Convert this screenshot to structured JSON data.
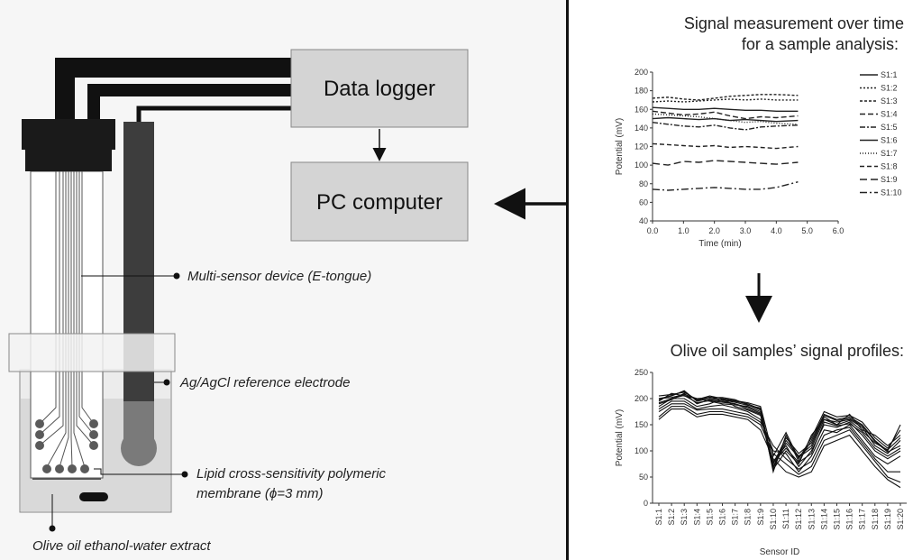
{
  "boxes": {
    "data_logger": "Data logger",
    "pc_computer": "PC computer"
  },
  "callouts": {
    "multi_sensor": "Multi-sensor device (E-tongue)",
    "reference_electrode": "Ag/AgCl reference electrode",
    "membrane_line1": "Lipid cross-sensitivity polymeric",
    "membrane_line2": "membrane (ϕ=3 mm)",
    "extract": "Olive oil ethanol-water extract"
  },
  "right": {
    "title1_line1": "Signal measurement over time",
    "title1_line2": "for a sample analysis:",
    "title2": "Olive oil samples’ signal profiles:"
  },
  "chart_data": [
    {
      "type": "line",
      "title": "Signal measurement over time for a sample analysis:",
      "xlabel": "Time (min)",
      "ylabel": "Potential (mV)",
      "xlim": [
        0,
        6
      ],
      "ylim": [
        40,
        200
      ],
      "xticks": [
        "0.0",
        "1.0",
        "2.0",
        "3.0",
        "4.0",
        "5.0",
        "6.0"
      ],
      "yticks": [
        "40",
        "60",
        "80",
        "100",
        "120",
        "140",
        "160",
        "180",
        "200"
      ],
      "x": [
        0,
        0.5,
        1,
        1.5,
        2,
        2.5,
        3,
        3.5,
        4,
        4.7
      ],
      "legend_position": "right",
      "series": [
        {
          "name": "S1:1",
          "dash": "",
          "values": [
            162,
            161,
            160,
            160,
            161,
            160,
            159,
            159,
            158,
            158
          ]
        },
        {
          "name": "S1:2",
          "dash": "2,2",
          "values": [
            168,
            169,
            168,
            169,
            170,
            171,
            170,
            171,
            170,
            170
          ]
        },
        {
          "name": "S1:3",
          "dash": "3,2",
          "values": [
            172,
            173,
            171,
            170,
            172,
            174,
            175,
            176,
            176,
            175
          ]
        },
        {
          "name": "S1:4",
          "dash": "6,3",
          "values": [
            158,
            156,
            154,
            155,
            157,
            153,
            150,
            152,
            151,
            153
          ]
        },
        {
          "name": "S1:5",
          "dash": "6,2,2,2",
          "values": [
            146,
            144,
            142,
            141,
            143,
            140,
            138,
            141,
            142,
            143
          ]
        },
        {
          "name": "S1:6",
          "dash": "",
          "values": [
            150,
            151,
            150,
            149,
            150,
            148,
            149,
            148,
            147,
            148
          ]
        },
        {
          "name": "S1:7",
          "dash": "1,2",
          "values": [
            155,
            154,
            153,
            152,
            150,
            148,
            146,
            147,
            145,
            144
          ]
        },
        {
          "name": "S1:8",
          "dash": "5,3",
          "values": [
            123,
            122,
            121,
            120,
            121,
            119,
            120,
            119,
            118,
            120
          ]
        },
        {
          "name": "S1:9",
          "dash": "8,4",
          "values": [
            102,
            100,
            104,
            103,
            105,
            104,
            103,
            102,
            101,
            103
          ]
        },
        {
          "name": "S1:10",
          "dash": "8,3,2,3",
          "values": [
            74,
            73,
            74,
            75,
            76,
            75,
            74,
            74,
            76,
            82
          ]
        }
      ]
    },
    {
      "type": "line",
      "title": "Olive oil samples’ signal profiles:",
      "xlabel": "Sensor ID",
      "ylabel": "Potential (mV)",
      "ylim": [
        0,
        250
      ],
      "yticks": [
        "0",
        "50",
        "100",
        "150",
        "200",
        "250"
      ],
      "categories": [
        "S1:1",
        "S1:2",
        "S1:3",
        "S1:4",
        "S1:5",
        "S1:6",
        "S1:7",
        "S1:8",
        "S1:9",
        "S1:10",
        "S1:11",
        "S1:12",
        "S1:13",
        "S1:14",
        "S1:15",
        "S1:16",
        "S1:17",
        "S1:18",
        "S1:19",
        "S1:20"
      ],
      "series": [
        {
          "values": [
            200,
            205,
            215,
            195,
            200,
            198,
            195,
            190,
            180,
            60,
            130,
            80,
            120,
            170,
            160,
            165,
            150,
            120,
            100,
            150
          ]
        },
        {
          "values": [
            195,
            210,
            205,
            200,
            195,
            190,
            188,
            185,
            175,
            70,
            120,
            90,
            110,
            165,
            150,
            170,
            140,
            130,
            110,
            130
          ]
        },
        {
          "values": [
            190,
            198,
            210,
            190,
            198,
            195,
            190,
            180,
            170,
            65,
            100,
            75,
            130,
            160,
            155,
            160,
            145,
            110,
            95,
            120
          ]
        },
        {
          "values": [
            185,
            200,
            200,
            185,
            190,
            200,
            185,
            178,
            168,
            80,
            110,
            70,
            100,
            150,
            145,
            155,
            130,
            100,
            85,
            100
          ]
        },
        {
          "values": [
            205,
            208,
            212,
            198,
            205,
            200,
            196,
            192,
            185,
            90,
            135,
            85,
            125,
            175,
            165,
            168,
            155,
            125,
            105,
            140
          ]
        },
        {
          "values": [
            180,
            195,
            195,
            180,
            185,
            188,
            182,
            175,
            160,
            100,
            95,
            60,
            90,
            140,
            135,
            150,
            120,
            90,
            75,
            90
          ]
        },
        {
          "values": [
            175,
            190,
            190,
            178,
            180,
            180,
            175,
            170,
            155,
            110,
            85,
            65,
            80,
            130,
            140,
            145,
            115,
            85,
            60,
            60
          ]
        },
        {
          "values": [
            165,
            185,
            185,
            170,
            175,
            175,
            170,
            165,
            150,
            95,
            75,
            55,
            70,
            120,
            130,
            140,
            110,
            80,
            50,
            40
          ]
        },
        {
          "values": [
            160,
            180,
            180,
            165,
            170,
            170,
            165,
            160,
            140,
            85,
            60,
            50,
            60,
            110,
            120,
            130,
            100,
            70,
            45,
            30
          ]
        },
        {
          "values": [
            200,
            202,
            208,
            200,
            202,
            202,
            198,
            188,
            178,
            75,
            125,
            95,
            115,
            168,
            158,
            162,
            148,
            118,
            98,
            110
          ]
        },
        {
          "values": [
            198,
            206,
            214,
            196,
            203,
            197,
            193,
            187,
            182,
            68,
            115,
            88,
            105,
            160,
            150,
            158,
            138,
            115,
            102,
            125
          ]
        },
        {
          "values": [
            192,
            200,
            206,
            192,
            196,
            193,
            190,
            183,
            172,
            78,
            105,
            78,
            95,
            155,
            148,
            152,
            135,
            105,
            90,
            105
          ]
        }
      ]
    }
  ]
}
